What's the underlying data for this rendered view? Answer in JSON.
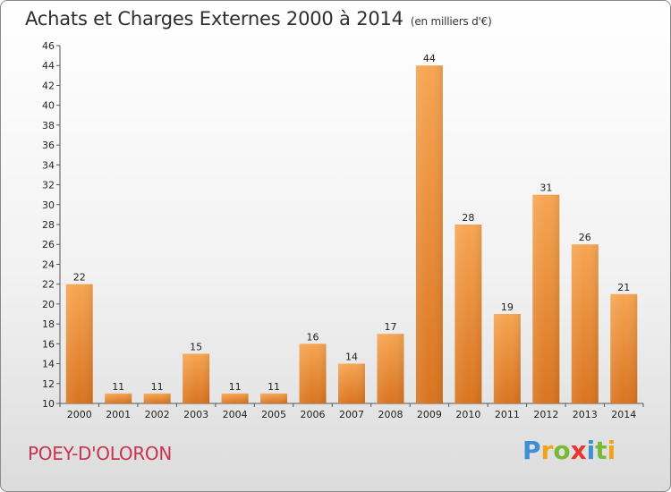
{
  "title": "Achats et Charges Externes 2000 à 2014",
  "unit": "(en milliers d'€)",
  "location": "POEY-D'OLORON",
  "brand": {
    "name": "Proxiti",
    "letters": [
      {
        "ch": "P",
        "color": "#3d8fd6"
      },
      {
        "ch": "r",
        "color": "#f2a31c"
      },
      {
        "ch": "o",
        "color": "#7cb83a"
      },
      {
        "ch": "x",
        "color": "#e8372f"
      },
      {
        "ch": "i",
        "color": "#3d8fd6"
      },
      {
        "ch": "t",
        "color": "#7cb83a"
      },
      {
        "ch": "i",
        "color": "#f2a31c"
      }
    ]
  },
  "chart_data": {
    "type": "bar",
    "title": "Achats et Charges Externes 2000 à 2014",
    "subtitle": "(en milliers d'€)",
    "categories": [
      "2000",
      "2001",
      "2002",
      "2003",
      "2004",
      "2005",
      "2006",
      "2007",
      "2008",
      "2009",
      "2010",
      "2011",
      "2012",
      "2013",
      "2014"
    ],
    "values": [
      22,
      11,
      11,
      15,
      11,
      11,
      16,
      14,
      17,
      44,
      28,
      19,
      31,
      26,
      21
    ],
    "ylim": [
      10,
      46
    ],
    "ytick_step": 2,
    "grid": false,
    "bar_color": "#f08a2a",
    "xlabel": "",
    "ylabel": ""
  }
}
